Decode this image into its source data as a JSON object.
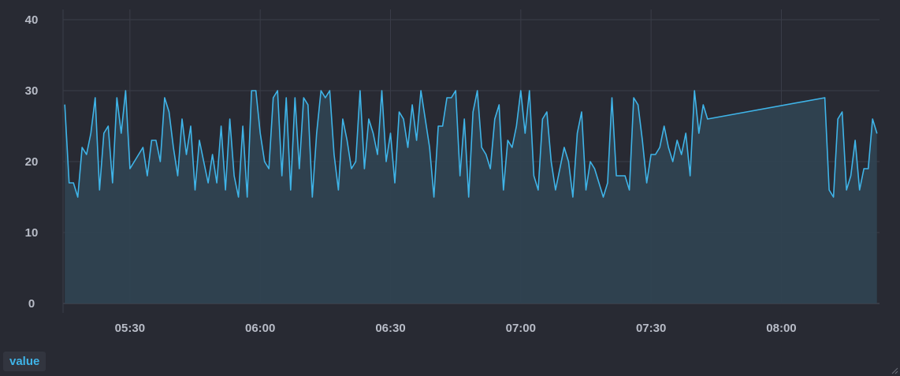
{
  "chart_data": {
    "type": "area",
    "title": "",
    "xlabel": "",
    "ylabel": "",
    "x_ticks": [
      "05:30",
      "06:00",
      "06:30",
      "07:00",
      "07:30",
      "08:00"
    ],
    "y_ticks": [
      0,
      10,
      20,
      30,
      40
    ],
    "xlim": [
      "05:15",
      "08:20"
    ],
    "ylim": [
      0,
      40
    ],
    "grid": true,
    "legend": "bottom-left",
    "series": [
      {
        "name": "value",
        "color": "#3fb4e8",
        "fill": "#2f4251",
        "points": [
          [
            "05:15",
            28
          ],
          [
            "05:16",
            17
          ],
          [
            "05:17",
            17
          ],
          [
            "05:18",
            15
          ],
          [
            "05:19",
            22
          ],
          [
            "05:20",
            21
          ],
          [
            "05:21",
            24
          ],
          [
            "05:22",
            29
          ],
          [
            "05:23",
            16
          ],
          [
            "05:24",
            24
          ],
          [
            "05:25",
            25
          ],
          [
            "05:26",
            17
          ],
          [
            "05:27",
            29
          ],
          [
            "05:28",
            24
          ],
          [
            "05:29",
            30
          ],
          [
            "05:30",
            19
          ],
          [
            "05:31",
            20
          ],
          [
            "05:32",
            21
          ],
          [
            "05:33",
            22
          ],
          [
            "05:34",
            18
          ],
          [
            "05:35",
            23
          ],
          [
            "05:36",
            23
          ],
          [
            "05:37",
            20
          ],
          [
            "05:38",
            29
          ],
          [
            "05:39",
            27
          ],
          [
            "05:40",
            22
          ],
          [
            "05:41",
            18
          ],
          [
            "05:42",
            26
          ],
          [
            "05:43",
            21
          ],
          [
            "05:44",
            25
          ],
          [
            "05:45",
            16
          ],
          [
            "05:46",
            23
          ],
          [
            "05:47",
            20
          ],
          [
            "05:48",
            17
          ],
          [
            "05:49",
            21
          ],
          [
            "05:50",
            17
          ],
          [
            "05:51",
            25
          ],
          [
            "05:52",
            16
          ],
          [
            "05:53",
            26
          ],
          [
            "05:54",
            18
          ],
          [
            "05:55",
            15
          ],
          [
            "05:56",
            25
          ],
          [
            "05:57",
            15
          ],
          [
            "05:58",
            30
          ],
          [
            "05:59",
            30
          ],
          [
            "06:00",
            24
          ],
          [
            "06:01",
            20
          ],
          [
            "06:02",
            19
          ],
          [
            "06:03",
            29
          ],
          [
            "06:04",
            30
          ],
          [
            "06:05",
            18
          ],
          [
            "06:06",
            29
          ],
          [
            "06:07",
            16
          ],
          [
            "06:08",
            29
          ],
          [
            "06:09",
            19
          ],
          [
            "06:10",
            29
          ],
          [
            "06:11",
            28
          ],
          [
            "06:12",
            15
          ],
          [
            "06:13",
            24
          ],
          [
            "06:14",
            30
          ],
          [
            "06:15",
            29
          ],
          [
            "06:16",
            30
          ],
          [
            "06:17",
            21
          ],
          [
            "06:18",
            16
          ],
          [
            "06:19",
            26
          ],
          [
            "06:20",
            23
          ],
          [
            "06:21",
            19
          ],
          [
            "06:22",
            20
          ],
          [
            "06:23",
            30
          ],
          [
            "06:24",
            19
          ],
          [
            "06:25",
            26
          ],
          [
            "06:26",
            24
          ],
          [
            "06:27",
            21
          ],
          [
            "06:28",
            30
          ],
          [
            "06:29",
            20
          ],
          [
            "06:30",
            24
          ],
          [
            "06:31",
            17
          ],
          [
            "06:32",
            27
          ],
          [
            "06:33",
            26
          ],
          [
            "06:34",
            22
          ],
          [
            "06:35",
            28
          ],
          [
            "06:36",
            23
          ],
          [
            "06:37",
            30
          ],
          [
            "06:38",
            26
          ],
          [
            "06:39",
            22
          ],
          [
            "06:40",
            15
          ],
          [
            "06:41",
            25
          ],
          [
            "06:42",
            25
          ],
          [
            "06:43",
            29
          ],
          [
            "06:44",
            29
          ],
          [
            "06:45",
            30
          ],
          [
            "06:46",
            18
          ],
          [
            "06:47",
            26
          ],
          [
            "06:48",
            15
          ],
          [
            "06:49",
            27
          ],
          [
            "06:50",
            30
          ],
          [
            "06:51",
            22
          ],
          [
            "06:52",
            21
          ],
          [
            "06:53",
            19
          ],
          [
            "06:54",
            26
          ],
          [
            "06:55",
            28
          ],
          [
            "06:56",
            16
          ],
          [
            "06:57",
            23
          ],
          [
            "06:58",
            22
          ],
          [
            "06:59",
            25
          ],
          [
            "07:00",
            30
          ],
          [
            "07:01",
            24
          ],
          [
            "07:02",
            30
          ],
          [
            "07:03",
            18
          ],
          [
            "07:04",
            16
          ],
          [
            "07:05",
            26
          ],
          [
            "07:06",
            27
          ],
          [
            "07:07",
            20
          ],
          [
            "07:08",
            16
          ],
          [
            "07:09",
            19
          ],
          [
            "07:10",
            22
          ],
          [
            "07:11",
            20
          ],
          [
            "07:12",
            15
          ],
          [
            "07:13",
            24
          ],
          [
            "07:14",
            27
          ],
          [
            "07:15",
            16
          ],
          [
            "07:16",
            20
          ],
          [
            "07:17",
            19
          ],
          [
            "07:18",
            17
          ],
          [
            "07:19",
            15
          ],
          [
            "07:20",
            17
          ],
          [
            "07:21",
            29
          ],
          [
            "07:22",
            18
          ],
          [
            "07:23",
            18
          ],
          [
            "07:24",
            18
          ],
          [
            "07:25",
            16
          ],
          [
            "07:26",
            29
          ],
          [
            "07:27",
            28
          ],
          [
            "07:28",
            23
          ],
          [
            "07:29",
            17
          ],
          [
            "07:30",
            21
          ],
          [
            "07:31",
            21
          ],
          [
            "07:32",
            22
          ],
          [
            "07:33",
            25
          ],
          [
            "07:34",
            22
          ],
          [
            "07:35",
            20
          ],
          [
            "07:36",
            23
          ],
          [
            "07:37",
            21
          ],
          [
            "07:38",
            24
          ],
          [
            "07:39",
            18
          ],
          [
            "07:40",
            30
          ],
          [
            "07:41",
            24
          ],
          [
            "07:42",
            28
          ],
          [
            "07:43",
            26
          ],
          [
            "08:10",
            29
          ],
          [
            "08:11",
            16
          ],
          [
            "08:12",
            15
          ],
          [
            "08:13",
            26
          ],
          [
            "08:14",
            27
          ],
          [
            "08:15",
            16
          ],
          [
            "08:16",
            18
          ],
          [
            "08:17",
            23
          ],
          [
            "08:18",
            16
          ],
          [
            "08:19",
            19
          ],
          [
            "08:20",
            19
          ],
          [
            "08:21",
            26
          ],
          [
            "08:22",
            24
          ]
        ]
      }
    ]
  }
}
